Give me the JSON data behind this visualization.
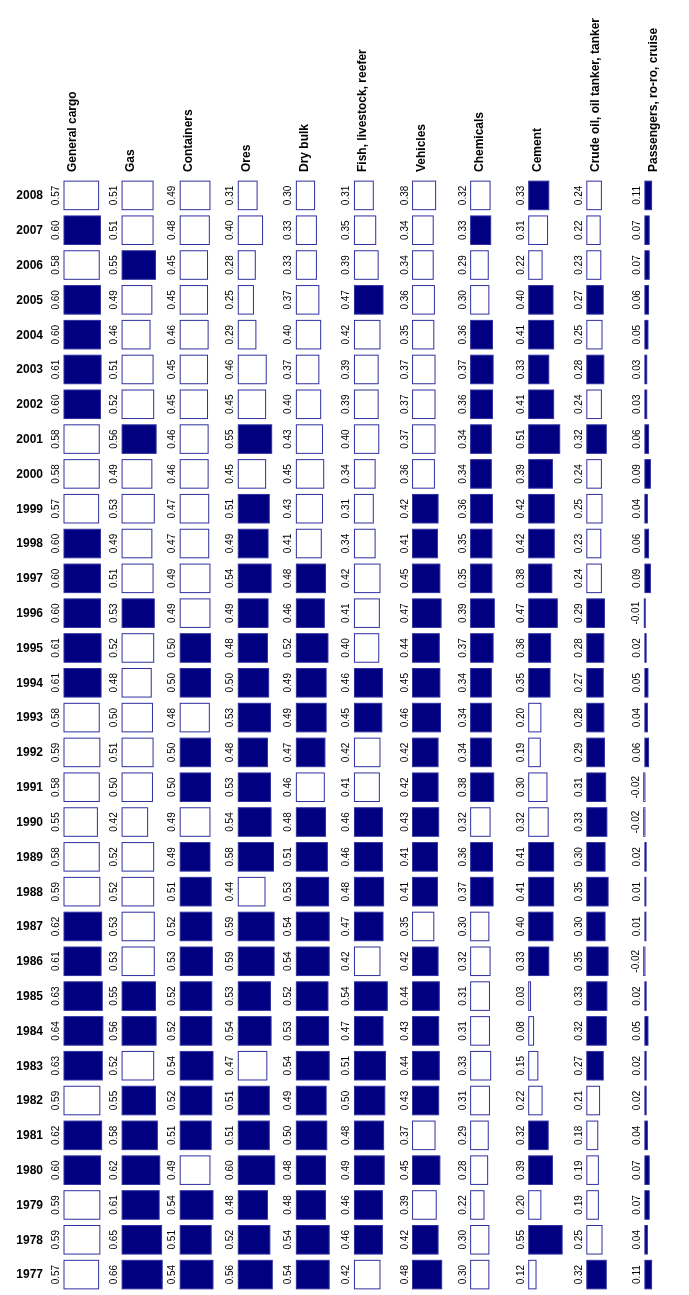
{
  "chart_data": [
    {
      "type": "bar",
      "orientation": "horizontal",
      "title": "General cargo",
      "tick_labels": "y",
      "categories": [
        "2008",
        "2007",
        "2006",
        "2005",
        "2004",
        "2003",
        "2002",
        "2001",
        "2000",
        "1999",
        "1998",
        "1997",
        "1996",
        "1995",
        "1994",
        "1993",
        "1992",
        "1991",
        "1990",
        "1989",
        "1988",
        "1987",
        "1986",
        "1985",
        "1984",
        "1983",
        "1982",
        "1981",
        "1980",
        "1979",
        "1978",
        "1977"
      ],
      "values": [
        0.57,
        0.6,
        0.58,
        0.6,
        0.6,
        0.61,
        0.6,
        0.58,
        0.58,
        0.57,
        0.6,
        0.6,
        0.6,
        0.61,
        0.61,
        0.58,
        0.59,
        0.58,
        0.55,
        0.58,
        0.59,
        0.62,
        0.61,
        0.63,
        0.64,
        0.63,
        0.59,
        0.62,
        0.6,
        0.59,
        0.59,
        0.57
      ],
      "value_labels": [
        "0.57",
        "0.60",
        "0.58",
        "0.60",
        "0.60",
        "0.61",
        "0.60",
        "0.58",
        "0.58",
        "0.57",
        "0.60",
        "0.60",
        "0.60",
        "0.61",
        "0.61",
        "0.58",
        "0.59",
        "0.58",
        "0.55",
        "0.58",
        "0.59",
        "0.62",
        "0.61",
        "0.63",
        "0.64",
        "0.63",
        "0.59",
        "0.62",
        "0.60",
        "0.59",
        "0.59",
        "0.57"
      ],
      "colors": [
        "#ffffff",
        "#000080",
        "#ffffff",
        "#000080",
        "#000080",
        "#000080",
        "#000080",
        "#ffffff",
        "#ffffff",
        "#ffffff",
        "#000080",
        "#000080",
        "#000080",
        "#000080",
        "#000080",
        "#ffffff",
        "#ffffff",
        "#ffffff",
        "#ffffff",
        "#ffffff",
        "#ffffff",
        "#000080",
        "#000080",
        "#000080",
        "#000080",
        "#000080",
        "#ffffff",
        "#000080",
        "#000080",
        "#ffffff",
        "#ffffff",
        "#ffffff"
      ]
    },
    {
      "type": "bar",
      "orientation": "horizontal",
      "title": "Gas",
      "tick_labels": false,
      "categories": [
        "2008",
        "2007",
        "2006",
        "2005",
        "2004",
        "2003",
        "2002",
        "2001",
        "2000",
        "1999",
        "1998",
        "1997",
        "1996",
        "1995",
        "1994",
        "1993",
        "1992",
        "1991",
        "1990",
        "1989",
        "1988",
        "1987",
        "1986",
        "1985",
        "1984",
        "1983",
        "1982",
        "1981",
        "1980",
        "1979",
        "1978",
        "1977"
      ],
      "values": [
        0.51,
        0.51,
        0.55,
        0.49,
        0.46,
        0.51,
        0.52,
        0.56,
        0.49,
        0.53,
        0.49,
        0.51,
        0.53,
        0.52,
        0.48,
        0.5,
        0.51,
        0.5,
        0.42,
        0.52,
        0.52,
        0.53,
        0.53,
        0.55,
        0.56,
        0.52,
        0.55,
        0.58,
        0.62,
        0.61,
        0.65,
        0.66
      ],
      "value_labels": [
        "0.51",
        "0.51",
        "0.55",
        "0.49",
        "0.46",
        "0.51",
        "0.52",
        "0.56",
        "0.49",
        "0.53",
        "0.49",
        "0.51",
        "0.53",
        "0.52",
        "0.48",
        "0.50",
        "0.51",
        "0.50",
        "0.42",
        "0.52",
        "0.52",
        "0.53",
        "0.53",
        "0.55",
        "0.56",
        "0.52",
        "0.55",
        "0.58",
        "0.62",
        "0.61",
        "0.65",
        "0.66"
      ],
      "colors": [
        "#ffffff",
        "#ffffff",
        "#000080",
        "#ffffff",
        "#ffffff",
        "#ffffff",
        "#ffffff",
        "#000080",
        "#ffffff",
        "#ffffff",
        "#ffffff",
        "#ffffff",
        "#000080",
        "#ffffff",
        "#ffffff",
        "#ffffff",
        "#ffffff",
        "#ffffff",
        "#ffffff",
        "#ffffff",
        "#ffffff",
        "#ffffff",
        "#ffffff",
        "#000080",
        "#000080",
        "#ffffff",
        "#000080",
        "#000080",
        "#000080",
        "#000080",
        "#000080",
        "#000080"
      ]
    },
    {
      "type": "bar",
      "orientation": "horizontal",
      "title": "Containers",
      "tick_labels": false,
      "categories": [
        "2008",
        "2007",
        "2006",
        "2005",
        "2004",
        "2003",
        "2002",
        "2001",
        "2000",
        "1999",
        "1998",
        "1997",
        "1996",
        "1995",
        "1994",
        "1993",
        "1992",
        "1991",
        "1990",
        "1989",
        "1988",
        "1987",
        "1986",
        "1985",
        "1984",
        "1983",
        "1982",
        "1981",
        "1980",
        "1979",
        "1978",
        "1977"
      ],
      "values": [
        0.49,
        0.48,
        0.45,
        0.45,
        0.46,
        0.45,
        0.45,
        0.46,
        0.46,
        0.47,
        0.47,
        0.49,
        0.49,
        0.5,
        0.5,
        0.48,
        0.5,
        0.5,
        0.49,
        0.49,
        0.51,
        0.52,
        0.53,
        0.52,
        0.52,
        0.54,
        0.52,
        0.51,
        0.49,
        0.54,
        0.51,
        0.54
      ],
      "value_labels": [
        "0.49",
        "0.48",
        "0.45",
        "0.45",
        "0.46",
        "0.45",
        "0.45",
        "0.46",
        "0.46",
        "0.47",
        "0.47",
        "0.49",
        "0.49",
        "0.50",
        "0.50",
        "0.48",
        "0.50",
        "0.50",
        "0.49",
        "0.49",
        "0.51",
        "0.52",
        "0.53",
        "0.52",
        "0.52",
        "0.54",
        "0.52",
        "0.51",
        "0.49",
        "0.54",
        "0.51",
        "0.54"
      ],
      "colors": [
        "#ffffff",
        "#ffffff",
        "#ffffff",
        "#ffffff",
        "#ffffff",
        "#ffffff",
        "#ffffff",
        "#ffffff",
        "#ffffff",
        "#ffffff",
        "#ffffff",
        "#ffffff",
        "#ffffff",
        "#000080",
        "#000080",
        "#ffffff",
        "#000080",
        "#000080",
        "#ffffff",
        "#000080",
        "#000080",
        "#000080",
        "#000080",
        "#000080",
        "#000080",
        "#000080",
        "#000080",
        "#000080",
        "#ffffff",
        "#000080",
        "#000080",
        "#000080"
      ]
    },
    {
      "type": "bar",
      "orientation": "horizontal",
      "title": "Ores",
      "tick_labels": false,
      "categories": [
        "2008",
        "2007",
        "2006",
        "2005",
        "2004",
        "2003",
        "2002",
        "2001",
        "2000",
        "1999",
        "1998",
        "1997",
        "1996",
        "1995",
        "1994",
        "1993",
        "1992",
        "1991",
        "1990",
        "1989",
        "1988",
        "1987",
        "1986",
        "1985",
        "1984",
        "1983",
        "1982",
        "1981",
        "1980",
        "1979",
        "1978",
        "1977"
      ],
      "values": [
        0.31,
        0.4,
        0.28,
        0.25,
        0.29,
        0.46,
        0.45,
        0.55,
        0.45,
        0.51,
        0.49,
        0.54,
        0.49,
        0.48,
        0.5,
        0.53,
        0.48,
        0.53,
        0.54,
        0.58,
        0.44,
        0.59,
        0.59,
        0.53,
        0.54,
        0.47,
        0.51,
        0.51,
        0.6,
        0.48,
        0.52,
        0.56
      ],
      "value_labels": [
        "0.31",
        "0.40",
        "0.28",
        "0.25",
        "0.29",
        "0.46",
        "0.45",
        "0.55",
        "0.45",
        "0.51",
        "0.49",
        "0.54",
        "0.49",
        "0.48",
        "0.50",
        "0.53",
        "0.48",
        "0.53",
        "0.54",
        "0.58",
        "0.44",
        "0.59",
        "0.59",
        "0.53",
        "0.54",
        "0.47",
        "0.51",
        "0.51",
        "0.60",
        "0.48",
        "0.52",
        "0.56"
      ],
      "colors": [
        "#ffffff",
        "#ffffff",
        "#ffffff",
        "#ffffff",
        "#ffffff",
        "#ffffff",
        "#ffffff",
        "#000080",
        "#ffffff",
        "#000080",
        "#000080",
        "#000080",
        "#000080",
        "#000080",
        "#000080",
        "#000080",
        "#000080",
        "#000080",
        "#000080",
        "#000080",
        "#ffffff",
        "#000080",
        "#000080",
        "#000080",
        "#000080",
        "#ffffff",
        "#000080",
        "#000080",
        "#000080",
        "#000080",
        "#000080",
        "#000080"
      ]
    },
    {
      "type": "bar",
      "orientation": "horizontal",
      "title": "Dry bulk",
      "tick_labels": false,
      "categories": [
        "2008",
        "2007",
        "2006",
        "2005",
        "2004",
        "2003",
        "2002",
        "2001",
        "2000",
        "1999",
        "1998",
        "1997",
        "1996",
        "1995",
        "1994",
        "1993",
        "1992",
        "1991",
        "1990",
        "1989",
        "1988",
        "1987",
        "1986",
        "1985",
        "1984",
        "1983",
        "1982",
        "1981",
        "1980",
        "1979",
        "1978",
        "1977"
      ],
      "values": [
        0.3,
        0.33,
        0.33,
        0.37,
        0.4,
        0.37,
        0.4,
        0.43,
        0.45,
        0.43,
        0.41,
        0.48,
        0.46,
        0.52,
        0.49,
        0.49,
        0.47,
        0.46,
        0.48,
        0.51,
        0.53,
        0.54,
        0.54,
        0.52,
        0.53,
        0.54,
        0.49,
        0.5,
        0.48,
        0.48,
        0.54,
        0.54
      ],
      "value_labels": [
        "0.30",
        "0.33",
        "0.33",
        "0.37",
        "0.40",
        "0.37",
        "0.40",
        "0.43",
        "0.45",
        "0.43",
        "0.41",
        "0.48",
        "0.46",
        "0.52",
        "0.49",
        "0.49",
        "0.47",
        "0.46",
        "0.48",
        "0.51",
        "0.53",
        "0.54",
        "0.54",
        "0.52",
        "0.53",
        "0.54",
        "0.49",
        "0.50",
        "0.48",
        "0.48",
        "0.54",
        "0.54"
      ],
      "colors": [
        "#ffffff",
        "#ffffff",
        "#ffffff",
        "#ffffff",
        "#ffffff",
        "#ffffff",
        "#ffffff",
        "#ffffff",
        "#ffffff",
        "#ffffff",
        "#ffffff",
        "#000080",
        "#000080",
        "#000080",
        "#000080",
        "#000080",
        "#000080",
        "#ffffff",
        "#000080",
        "#000080",
        "#000080",
        "#000080",
        "#000080",
        "#000080",
        "#000080",
        "#000080",
        "#000080",
        "#000080",
        "#000080",
        "#000080",
        "#000080",
        "#000080"
      ]
    },
    {
      "type": "bar",
      "orientation": "horizontal",
      "title": "Fish, livestock, reefer",
      "tick_labels": false,
      "categories": [
        "2008",
        "2007",
        "2006",
        "2005",
        "2004",
        "2003",
        "2002",
        "2001",
        "2000",
        "1999",
        "1998",
        "1997",
        "1996",
        "1995",
        "1994",
        "1993",
        "1992",
        "1991",
        "1990",
        "1989",
        "1988",
        "1987",
        "1986",
        "1985",
        "1984",
        "1983",
        "1982",
        "1981",
        "1980",
        "1979",
        "1978",
        "1977"
      ],
      "values": [
        0.31,
        0.35,
        0.39,
        0.47,
        0.42,
        0.39,
        0.39,
        0.4,
        0.34,
        0.31,
        0.34,
        0.42,
        0.41,
        0.4,
        0.46,
        0.45,
        0.42,
        0.41,
        0.46,
        0.46,
        0.48,
        0.47,
        0.42,
        0.54,
        0.47,
        0.51,
        0.5,
        0.48,
        0.49,
        0.46,
        0.46,
        0.42
      ],
      "value_labels": [
        "0.31",
        "0.35",
        "0.39",
        "0.47",
        "0.42",
        "0.39",
        "0.39",
        "0.40",
        "0.34",
        "0.31",
        "0.34",
        "0.42",
        "0.41",
        "0.40",
        "0.46",
        "0.45",
        "0.42",
        "0.41",
        "0.46",
        "0.46",
        "0.48",
        "0.47",
        "0.42",
        "0.54",
        "0.47",
        "0.51",
        "0.50",
        "0.48",
        "0.49",
        "0.46",
        "0.46",
        "0.42"
      ],
      "colors": [
        "#ffffff",
        "#ffffff",
        "#ffffff",
        "#000080",
        "#ffffff",
        "#ffffff",
        "#ffffff",
        "#ffffff",
        "#ffffff",
        "#ffffff",
        "#ffffff",
        "#ffffff",
        "#ffffff",
        "#ffffff",
        "#000080",
        "#000080",
        "#ffffff",
        "#ffffff",
        "#000080",
        "#000080",
        "#000080",
        "#000080",
        "#ffffff",
        "#000080",
        "#000080",
        "#000080",
        "#000080",
        "#000080",
        "#000080",
        "#000080",
        "#000080",
        "#ffffff"
      ]
    },
    {
      "type": "bar",
      "orientation": "horizontal",
      "title": "Vehicles",
      "tick_labels": false,
      "categories": [
        "2008",
        "2007",
        "2006",
        "2005",
        "2004",
        "2003",
        "2002",
        "2001",
        "2000",
        "1999",
        "1998",
        "1997",
        "1996",
        "1995",
        "1994",
        "1993",
        "1992",
        "1991",
        "1990",
        "1989",
        "1988",
        "1987",
        "1986",
        "1985",
        "1984",
        "1983",
        "1982",
        "1981",
        "1980",
        "1979",
        "1978",
        "1977"
      ],
      "values": [
        0.38,
        0.34,
        0.34,
        0.36,
        0.35,
        0.37,
        0.37,
        0.37,
        0.36,
        0.42,
        0.41,
        0.45,
        0.47,
        0.44,
        0.45,
        0.46,
        0.42,
        0.42,
        0.43,
        0.41,
        0.41,
        0.35,
        0.42,
        0.44,
        0.43,
        0.44,
        0.43,
        0.37,
        0.45,
        0.39,
        0.42,
        0.48
      ],
      "value_labels": [
        "0.38",
        "0.34",
        "0.34",
        "0.36",
        "0.35",
        "0.37",
        "0.37",
        "0.37",
        "0.36",
        "0.42",
        "0.41",
        "0.45",
        "0.47",
        "0.44",
        "0.45",
        "0.46",
        "0.42",
        "0.42",
        "0.43",
        "0.41",
        "0.41",
        "0.35",
        "0.42",
        "0.44",
        "0.43",
        "0.44",
        "0.43",
        "0.37",
        "0.45",
        "0.39",
        "0.42",
        "0.48"
      ],
      "colors": [
        "#ffffff",
        "#ffffff",
        "#ffffff",
        "#ffffff",
        "#ffffff",
        "#ffffff",
        "#ffffff",
        "#ffffff",
        "#ffffff",
        "#000080",
        "#000080",
        "#000080",
        "#000080",
        "#000080",
        "#000080",
        "#000080",
        "#000080",
        "#000080",
        "#000080",
        "#000080",
        "#000080",
        "#ffffff",
        "#000080",
        "#000080",
        "#000080",
        "#000080",
        "#000080",
        "#ffffff",
        "#000080",
        "#ffffff",
        "#000080",
        "#000080"
      ]
    },
    {
      "type": "bar",
      "orientation": "horizontal",
      "title": "Chemicals",
      "tick_labels": false,
      "categories": [
        "2008",
        "2007",
        "2006",
        "2005",
        "2004",
        "2003",
        "2002",
        "2001",
        "2000",
        "1999",
        "1998",
        "1997",
        "1996",
        "1995",
        "1994",
        "1993",
        "1992",
        "1991",
        "1990",
        "1989",
        "1988",
        "1987",
        "1986",
        "1985",
        "1984",
        "1983",
        "1982",
        "1981",
        "1980",
        "1979",
        "1978",
        "1977"
      ],
      "values": [
        0.32,
        0.33,
        0.29,
        0.3,
        0.36,
        0.37,
        0.36,
        0.34,
        0.34,
        0.36,
        0.35,
        0.35,
        0.39,
        0.37,
        0.34,
        0.34,
        0.34,
        0.38,
        0.32,
        0.36,
        0.37,
        0.3,
        0.32,
        0.31,
        0.31,
        0.33,
        0.31,
        0.29,
        0.28,
        0.22,
        0.3,
        0.3
      ],
      "value_labels": [
        "0.32",
        "0.33",
        "0.29",
        "0.30",
        "0.36",
        "0.37",
        "0.36",
        "0.34",
        "0.34",
        "0.36",
        "0.35",
        "0.35",
        "0.39",
        "0.37",
        "0.34",
        "0.34",
        "0.34",
        "0.38",
        "0.32",
        "0.36",
        "0.37",
        "0.30",
        "0.32",
        "0.31",
        "0.31",
        "0.33",
        "0.31",
        "0.29",
        "0.28",
        "0.22",
        "0.30",
        "0.30"
      ],
      "colors": [
        "#ffffff",
        "#000080",
        "#ffffff",
        "#ffffff",
        "#000080",
        "#000080",
        "#000080",
        "#000080",
        "#000080",
        "#000080",
        "#000080",
        "#000080",
        "#000080",
        "#000080",
        "#000080",
        "#000080",
        "#000080",
        "#000080",
        "#ffffff",
        "#000080",
        "#000080",
        "#ffffff",
        "#ffffff",
        "#ffffff",
        "#ffffff",
        "#ffffff",
        "#ffffff",
        "#ffffff",
        "#ffffff",
        "#ffffff",
        "#ffffff",
        "#ffffff"
      ]
    },
    {
      "type": "bar",
      "orientation": "horizontal",
      "title": "Cement",
      "tick_labels": false,
      "categories": [
        "2008",
        "2007",
        "2006",
        "2005",
        "2004",
        "2003",
        "2002",
        "2001",
        "2000",
        "1999",
        "1998",
        "1997",
        "1996",
        "1995",
        "1994",
        "1993",
        "1992",
        "1991",
        "1990",
        "1989",
        "1988",
        "1987",
        "1986",
        "1985",
        "1984",
        "1983",
        "1982",
        "1981",
        "1980",
        "1979",
        "1978",
        "1977"
      ],
      "values": [
        0.33,
        0.31,
        0.22,
        0.4,
        0.41,
        0.33,
        0.41,
        0.51,
        0.39,
        0.42,
        0.42,
        0.38,
        0.47,
        0.36,
        0.35,
        0.2,
        0.19,
        0.3,
        0.32,
        0.41,
        0.41,
        0.4,
        0.33,
        0.03,
        0.08,
        0.15,
        0.22,
        0.32,
        0.39,
        0.2,
        0.55,
        0.12
      ],
      "value_labels": [
        "0.33",
        "0.31",
        "0.22",
        "0.40",
        "0.41",
        "0.33",
        "0.41",
        "0.51",
        "0.39",
        "0.42",
        "0.42",
        "0.38",
        "0.47",
        "0.36",
        "0.35",
        "0.20",
        "0.19",
        "0.30",
        "0.32",
        "0.41",
        "0.41",
        "0.40",
        "0.33",
        "0.03",
        "0.08",
        "0.15",
        "0.22",
        "0.32",
        "0.39",
        "0.20",
        "0.55",
        "0.12"
      ],
      "colors": [
        "#000080",
        "#ffffff",
        "#ffffff",
        "#000080",
        "#000080",
        "#000080",
        "#000080",
        "#000080",
        "#000080",
        "#000080",
        "#000080",
        "#000080",
        "#000080",
        "#000080",
        "#000080",
        "#ffffff",
        "#ffffff",
        "#ffffff",
        "#ffffff",
        "#000080",
        "#000080",
        "#000080",
        "#000080",
        "#ffffff",
        "#ffffff",
        "#ffffff",
        "#ffffff",
        "#000080",
        "#000080",
        "#ffffff",
        "#000080",
        "#ffffff"
      ]
    },
    {
      "type": "bar",
      "orientation": "horizontal",
      "title": "Crude oil, oil tanker, tanker",
      "tick_labels": false,
      "categories": [
        "2008",
        "2007",
        "2006",
        "2005",
        "2004",
        "2003",
        "2002",
        "2001",
        "2000",
        "1999",
        "1998",
        "1997",
        "1996",
        "1995",
        "1994",
        "1993",
        "1992",
        "1991",
        "1990",
        "1989",
        "1988",
        "1987",
        "1986",
        "1985",
        "1984",
        "1983",
        "1982",
        "1981",
        "1980",
        "1979",
        "1978",
        "1977"
      ],
      "values": [
        0.24,
        0.22,
        0.23,
        0.27,
        0.25,
        0.28,
        0.24,
        0.32,
        0.24,
        0.25,
        0.23,
        0.24,
        0.29,
        0.28,
        0.27,
        0.28,
        0.29,
        0.31,
        0.33,
        0.3,
        0.35,
        0.3,
        0.35,
        0.33,
        0.32,
        0.27,
        0.21,
        0.18,
        0.19,
        0.19,
        0.25,
        0.32
      ],
      "value_labels": [
        "0.24",
        "0.22",
        "0.23",
        "0.27",
        "0.25",
        "0.28",
        "0.24",
        "0.32",
        "0.24",
        "0.25",
        "0.23",
        "0.24",
        "0.29",
        "0.28",
        "0.27",
        "0.28",
        "0.29",
        "0.31",
        "0.33",
        "0.30",
        "0.35",
        "0.30",
        "0.35",
        "0.33",
        "0.32",
        "0.27",
        "0.21",
        "0.18",
        "0.19",
        "0.19",
        "0.25",
        "0.32"
      ],
      "colors": [
        "#ffffff",
        "#ffffff",
        "#ffffff",
        "#000080",
        "#ffffff",
        "#000080",
        "#ffffff",
        "#000080",
        "#ffffff",
        "#ffffff",
        "#ffffff",
        "#ffffff",
        "#000080",
        "#000080",
        "#000080",
        "#000080",
        "#000080",
        "#000080",
        "#000080",
        "#000080",
        "#000080",
        "#000080",
        "#000080",
        "#000080",
        "#000080",
        "#000080",
        "#ffffff",
        "#ffffff",
        "#ffffff",
        "#ffffff",
        "#ffffff",
        "#000080"
      ]
    },
    {
      "type": "bar",
      "orientation": "horizontal",
      "title": "Passengers, ro-ro, cruise",
      "tick_labels": false,
      "categories": [
        "2008",
        "2007",
        "2006",
        "2005",
        "2004",
        "2003",
        "2002",
        "2001",
        "2000",
        "1999",
        "1998",
        "1997",
        "1996",
        "1995",
        "1994",
        "1993",
        "1992",
        "1991",
        "1990",
        "1989",
        "1988",
        "1987",
        "1986",
        "1985",
        "1984",
        "1983",
        "1982",
        "1981",
        "1980",
        "1979",
        "1978",
        "1977"
      ],
      "values": [
        0.11,
        0.07,
        0.07,
        0.06,
        0.05,
        0.03,
        0.03,
        0.06,
        0.09,
        0.04,
        0.06,
        0.09,
        -0.01,
        0.02,
        0.05,
        0.04,
        0.06,
        -0.02,
        -0.02,
        0.02,
        0.01,
        0.01,
        -0.02,
        0.02,
        0.05,
        0.02,
        0.02,
        0.04,
        0.07,
        0.07,
        0.04,
        0.11
      ],
      "value_labels": [
        "0.11",
        "0.07",
        "0.07",
        "0.06",
        "0.05",
        "0.03",
        "0.03",
        "0.06",
        "0.09",
        "0.04",
        "0.06",
        "0.09",
        "-0.01",
        "0.02",
        "0.05",
        "0.04",
        "0.06",
        "-0.02",
        "-0.02",
        "0.02",
        "0.01",
        "0.01",
        "-0.02",
        "0.02",
        "0.05",
        "0.02",
        "0.02",
        "0.04",
        "0.07",
        "0.07",
        "0.04",
        "0.11"
      ],
      "colors": [
        "#000080",
        "#000080",
        "#000080",
        "#000080",
        "#000080",
        "#000080",
        "#000080",
        "#000080",
        "#000080",
        "#000080",
        "#000080",
        "#000080",
        "#ffffff",
        "#000080",
        "#000080",
        "#000080",
        "#000080",
        "#ffffff",
        "#ffffff",
        "#000080",
        "#ffffff",
        "#ffffff",
        "#ffffff",
        "#000080",
        "#000080",
        "#000080",
        "#000080",
        "#000080",
        "#000080",
        "#000080",
        "#000080",
        "#000080"
      ]
    }
  ]
}
